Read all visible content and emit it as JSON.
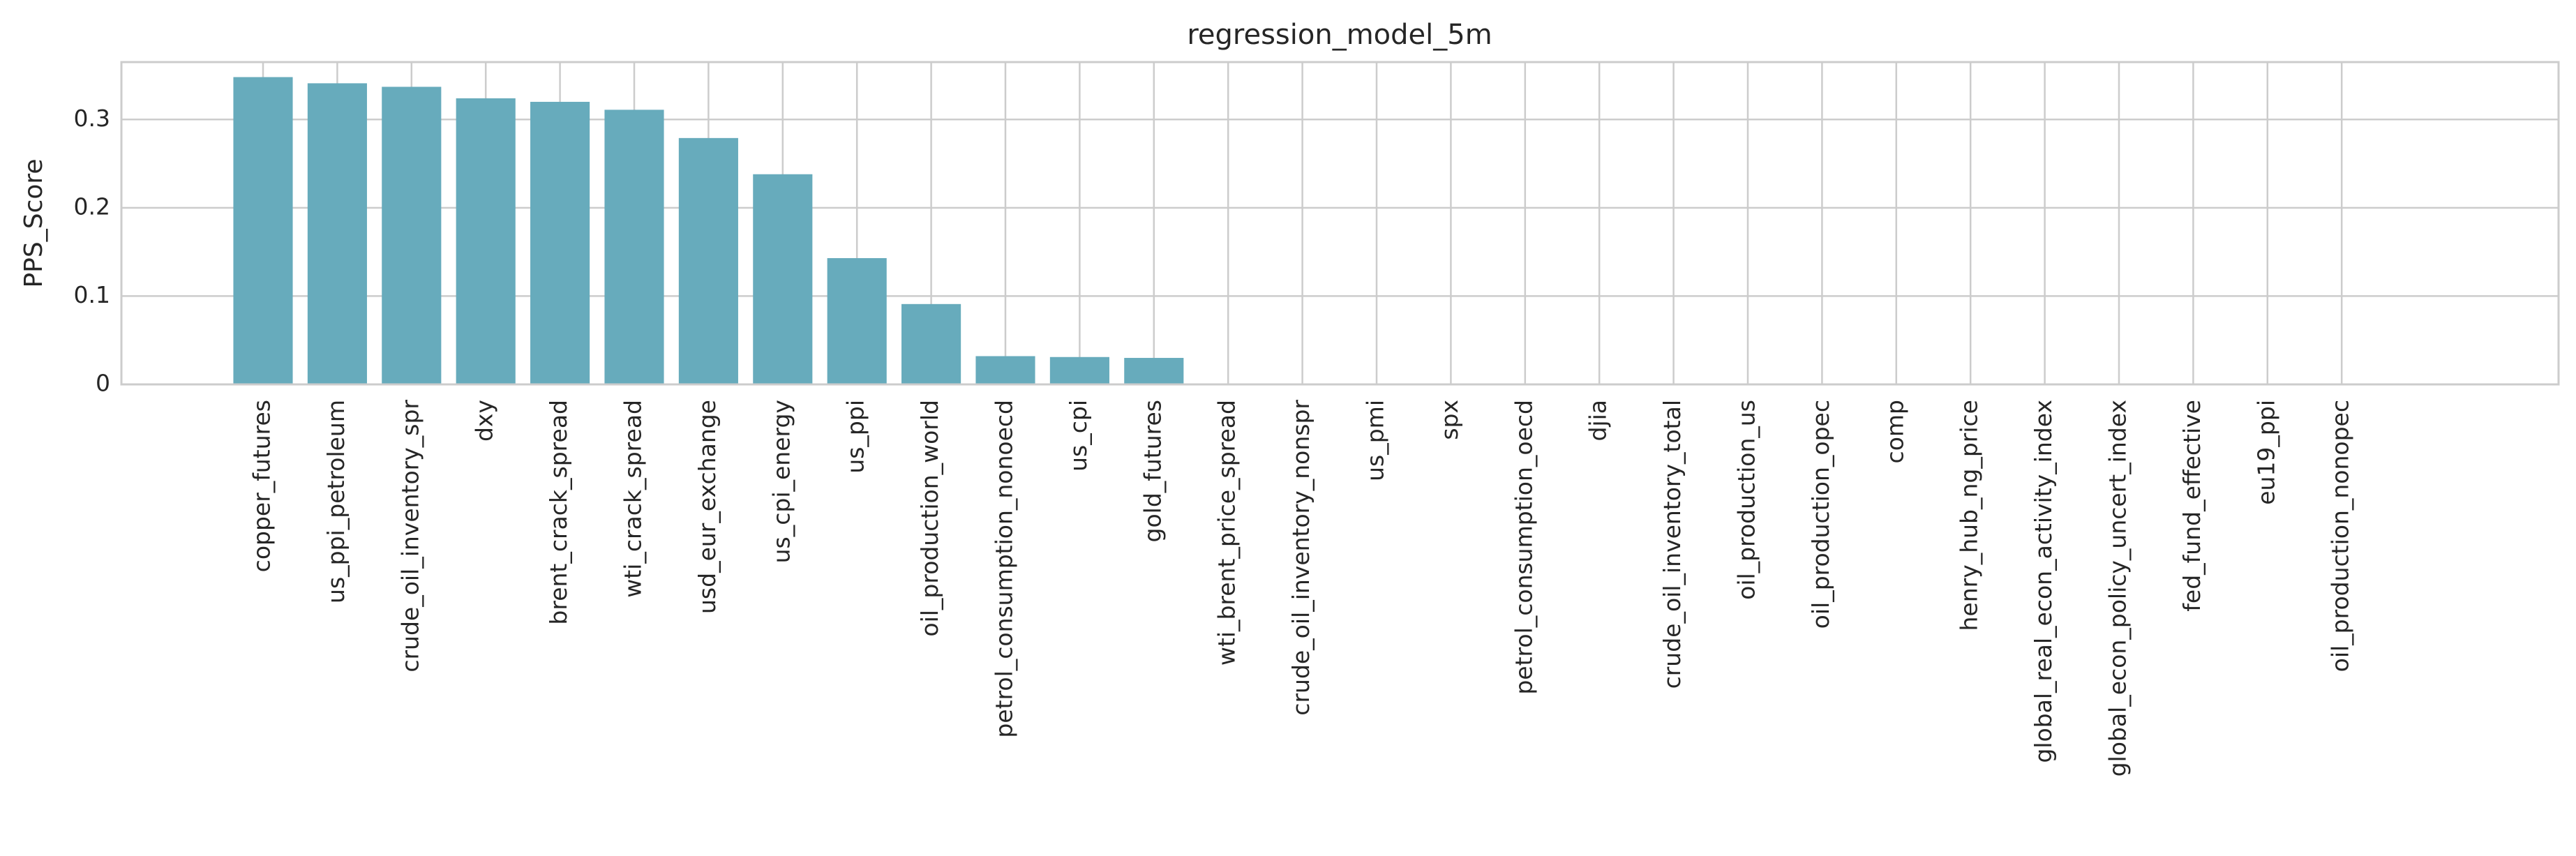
{
  "chart_data": {
    "type": "bar",
    "title": "regression_model_5m",
    "y_label": "PPS_Score",
    "categories": [
      "copper_futures",
      "us_ppi_petroleum",
      "crude_oil_inventory_spr",
      "dxy",
      "brent_crack_spread",
      "wti_crack_spread",
      "usd_eur_exchange",
      "us_cpi_energy",
      "us_ppi",
      "oil_production_world",
      "petrol_consumption_nonoecd",
      "us_cpi",
      "gold_futures",
      "wti_brent_price_spread",
      "crude_oil_inventory_nonspr",
      "us_pmi",
      "spx",
      "petrol_consumption_oecd",
      "djia",
      "crude_oil_inventory_total",
      "oil_production_us",
      "oil_production_opec",
      "comp",
      "henry_hub_ng_price",
      "global_real_econ_activity_index",
      "global_econ_policy_uncert_index",
      "fed_fund_effective",
      "eu19_ppi",
      "oil_production_nonopec"
    ],
    "values": [
      0.348,
      0.341,
      0.337,
      0.324,
      0.32,
      0.311,
      0.279,
      0.238,
      0.143,
      0.091,
      0.032,
      0.031,
      0.03,
      0,
      0,
      0,
      0,
      0,
      0,
      0,
      0,
      0,
      0,
      0,
      0,
      0,
      0,
      0,
      0
    ],
    "color": "#67abbc",
    "ylim": [
      0,
      0.365
    ],
    "yticks": [
      0,
      0.1,
      0.2,
      0.3
    ],
    "grid": true
  }
}
